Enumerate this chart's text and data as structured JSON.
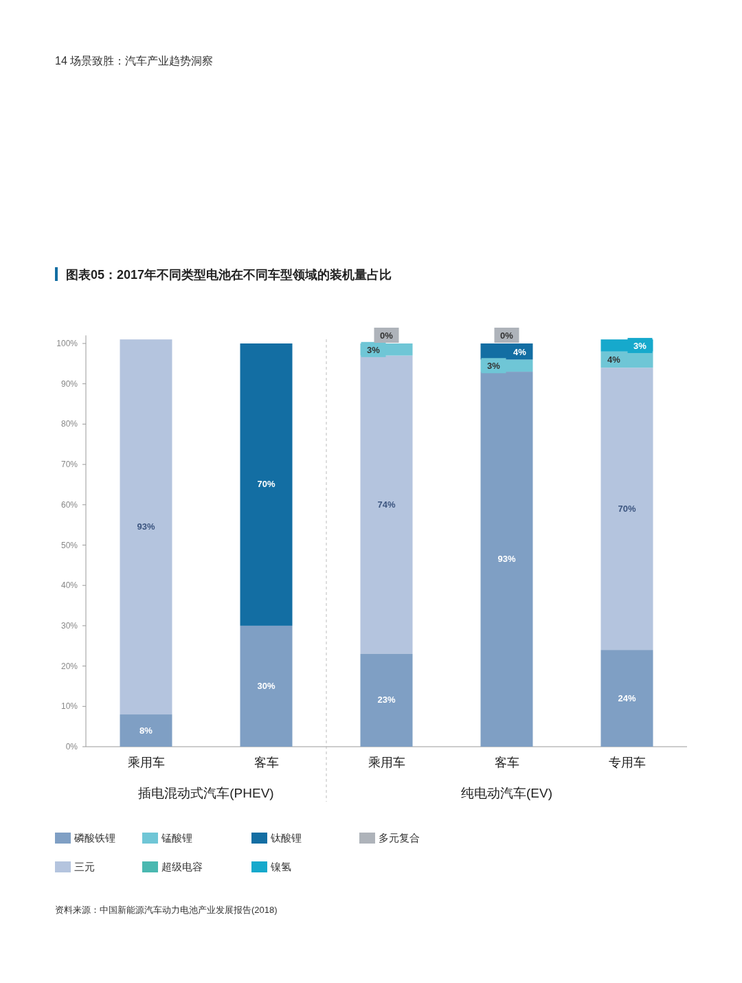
{
  "chart_data": {
    "type": "bar",
    "stacked": true,
    "title": "图表05：2017年不同类型电池在不同车型领域的装机量占比",
    "subtitle": "14 场景致胜：汽车产业趋势洞察",
    "categories": [
      "乘用车",
      "客车",
      "乘用车",
      "客车",
      "专用车"
    ],
    "series": [
      {
        "name": "磷酸铁锂",
        "color": "#7f9fc4",
        "values": [
          8,
          30,
          23,
          93,
          24
        ],
        "value_labels": [
          "8%",
          "30%",
          "23%",
          "93%",
          "24%"
        ]
      },
      {
        "name": "三元",
        "color": "#b4c4de",
        "values": [
          93,
          null,
          74,
          null,
          70
        ],
        "value_labels": [
          "93%",
          null,
          "74%",
          null,
          "70%"
        ]
      },
      {
        "name": "锰酸锂",
        "color": "#6fc6d6",
        "values": [
          null,
          null,
          3,
          3,
          4
        ],
        "value_labels": [
          null,
          null,
          "3%",
          "3%",
          "4%"
        ]
      },
      {
        "name": "超级电容",
        "color": "#4ab8b0",
        "values": [
          null,
          null,
          null,
          null,
          null
        ]
      },
      {
        "name": "钛酸锂",
        "color": "#136ea3",
        "values": [
          null,
          70,
          null,
          4,
          null
        ],
        "value_labels": [
          null,
          "70%",
          null,
          "4%",
          null
        ]
      },
      {
        "name": "镍氢",
        "color": "#16a9cc",
        "values": [
          null,
          null,
          null,
          null,
          3
        ],
        "value_labels": [
          null,
          null,
          null,
          null,
          "3%"
        ]
      },
      {
        "name": "多元复合",
        "color": "#aeb3ba",
        "values": [
          null,
          null,
          0,
          0,
          null
        ],
        "value_labels": [
          null,
          null,
          "0%",
          "0%",
          null
        ]
      }
    ],
    "ylim": [
      0,
      102
    ],
    "yticks": [
      {
        "value": 0,
        "label": "0%"
      },
      {
        "value": 10,
        "label": "10%"
      },
      {
        "value": 20,
        "label": "20%"
      },
      {
        "value": 30,
        "label": "30%"
      },
      {
        "value": 40,
        "label": "40%"
      },
      {
        "value": 50,
        "label": "50%"
      },
      {
        "value": 60,
        "label": "60%"
      },
      {
        "value": 70,
        "label": "70%"
      },
      {
        "value": 80,
        "label": "80%"
      },
      {
        "value": 90,
        "label": "90%"
      },
      {
        "value": 100,
        "label": "100%"
      }
    ],
    "grid": false,
    "legend": "bottom",
    "annotations": [
      "插电混动式汽车(PHEV)",
      "纯电动汽车(EV)",
      "资料来源：中国新能源汽车动力电池产业发展报告(2018)"
    ]
  }
}
